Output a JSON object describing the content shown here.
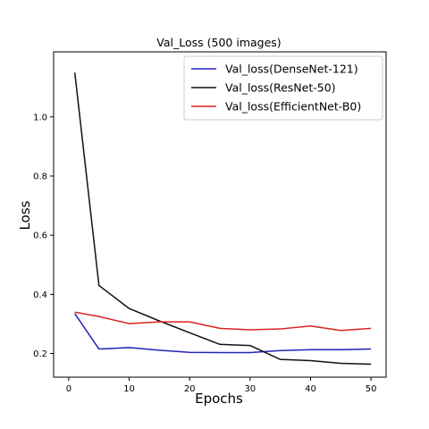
{
  "chart_data": {
    "type": "line",
    "title": "Val_Loss (500 images)",
    "xlabel": "Epochs",
    "ylabel": "Loss",
    "xlim": [
      -2.5,
      52.5
    ],
    "ylim": [
      0.12,
      1.22
    ],
    "xticks": [
      0,
      10,
      20,
      30,
      40,
      50
    ],
    "yticks": [
      0.2,
      0.4,
      0.6,
      0.8,
      1.0
    ],
    "ytick_labels": [
      "0.2",
      "0.4",
      "0.6",
      "0.8",
      "1.0"
    ],
    "grid": false,
    "legend_position": "top-right",
    "x": [
      1,
      5,
      10,
      15,
      20,
      25,
      30,
      35,
      40,
      45,
      50
    ],
    "series": [
      {
        "name": "Val_loss(DenseNet-121)",
        "color": "#2222bb",
        "values": [
          0.335,
          0.215,
          0.22,
          0.211,
          0.204,
          0.203,
          0.203,
          0.21,
          0.213,
          0.213,
          0.215
        ]
      },
      {
        "name": "Val_loss(ResNet-50)",
        "color": "#111111",
        "values": [
          1.15,
          0.43,
          0.352,
          0.31,
          0.27,
          0.231,
          0.227,
          0.18,
          0.176,
          0.167,
          0.164
        ]
      },
      {
        "name": "Val_loss(EfficientNet-B0)",
        "color": "#dd2222",
        "values": [
          0.34,
          0.325,
          0.301,
          0.307,
          0.307,
          0.285,
          0.28,
          0.283,
          0.293,
          0.278,
          0.285
        ]
      }
    ]
  }
}
